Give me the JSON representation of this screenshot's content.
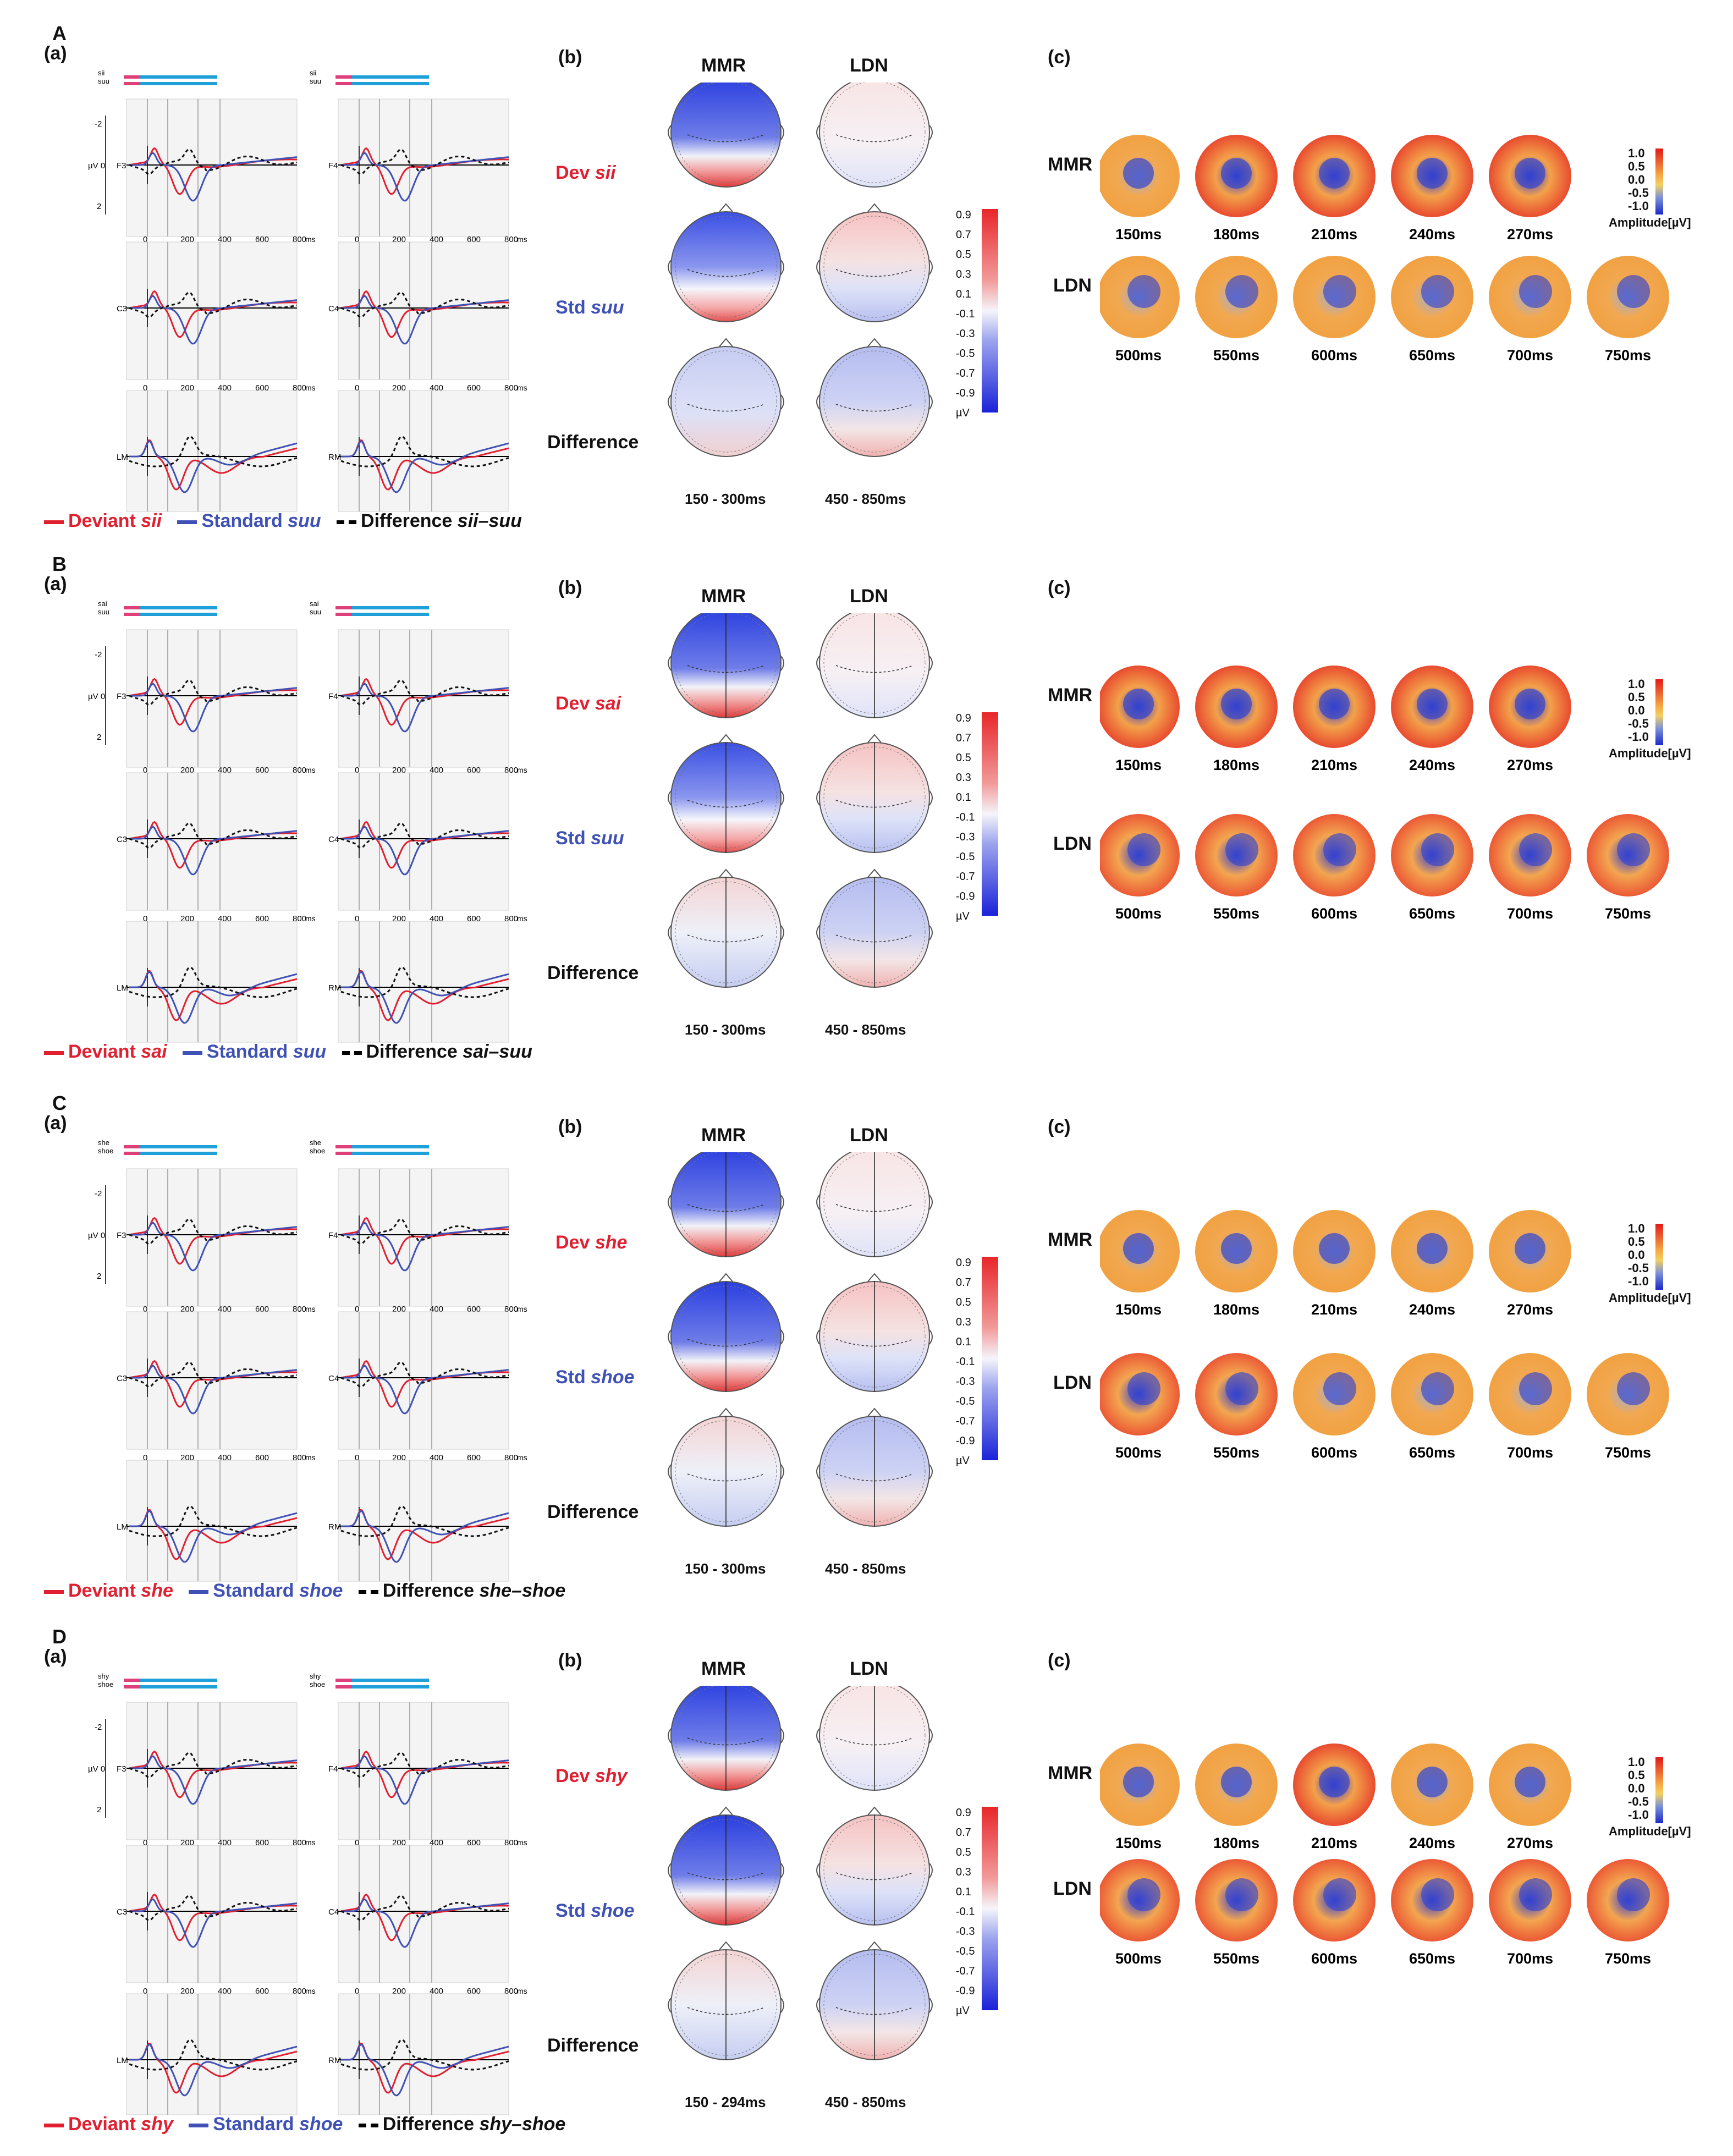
{
  "colors": {
    "deviant": "#e02030",
    "standard": "#3f51b5",
    "difference": "#111111",
    "pink": "#e0407a",
    "cyan": "#1fa0d8",
    "blue_map": "#2233cc",
    "red_map": "#e53030",
    "orange_map": "#f4a040"
  },
  "common": {
    "section_a": "(a)",
    "section_b": "(b)",
    "section_c": "(c)",
    "mmr": "MMR",
    "ldn": "LDN",
    "difference": "Difference",
    "uv0": "µV 0",
    "ms": "ms",
    "xticks": [
      "0",
      "200",
      "400",
      "600",
      "800"
    ],
    "yticks_top": "-2",
    "yticks_bottom": "2",
    "cbar_ticks": [
      "0.9",
      "0.7",
      "0.5",
      "0.3",
      "0.1",
      "-0.1",
      "-0.3",
      "-0.5",
      "-0.7",
      "-0.9",
      "µV"
    ],
    "amp_ticks": [
      "1.0",
      "0.5",
      "0.0",
      "-0.5",
      "-1.0"
    ],
    "amp_label": "Amplitude[µV]",
    "mmr_times": [
      "150ms",
      "180ms",
      "210ms",
      "240ms",
      "270ms"
    ],
    "ldn_times": [
      "500ms",
      "550ms",
      "600ms",
      "650ms",
      "700ms",
      "750ms"
    ],
    "ldn_window": "450 - 850ms",
    "electrodes_left": [
      "F3",
      "C3",
      "LM"
    ],
    "electrodes_right": [
      "F4",
      "C4",
      "RM"
    ],
    "deviant_word": "Deviant",
    "standard_word": "Standard",
    "difference_word": "Difference"
  },
  "panels": [
    {
      "letter": "A",
      "dev": "sii",
      "std": "suu",
      "dev_label": "Dev",
      "std_label": "Std",
      "mmr_window": "150 - 300ms",
      "pair": "sii–suu",
      "tiny_top": "sii",
      "tiny_bottom": "suu"
    },
    {
      "letter": "B",
      "dev": "sai",
      "std": "suu",
      "dev_label": "Dev",
      "std_label": "Std",
      "mmr_window": "150 - 300ms",
      "pair": "sai–suu",
      "tiny_top": "sai",
      "tiny_bottom": "suu"
    },
    {
      "letter": "C",
      "dev": "she",
      "std": "shoe",
      "dev_label": "Dev",
      "std_label": "Std",
      "mmr_window": "150 - 300ms",
      "pair": "she–shoe",
      "tiny_top": "she",
      "tiny_bottom": "shoe"
    },
    {
      "letter": "D",
      "dev": "shy",
      "std": "shoe",
      "dev_label": "Dev",
      "std_label": "Std",
      "mmr_window": "150 - 294ms",
      "pair": "shy–shoe",
      "tiny_top": "shy",
      "tiny_bottom": "shoe"
    }
  ]
}
